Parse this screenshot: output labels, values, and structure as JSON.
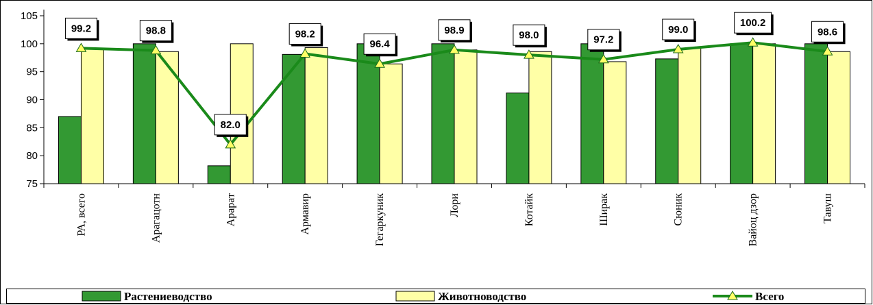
{
  "chart_data": {
    "type": "bar",
    "categories": [
      "РА, всего",
      "Арагацотн",
      "Арарат",
      "Армавир",
      "Гегаркуник",
      "Лори",
      "Котайк",
      "Ширак",
      "Сюник",
      "Вайоц дзор",
      "Тавуш"
    ],
    "y_ticks": [
      "75",
      "80",
      "85",
      "90",
      "95",
      "100",
      "105"
    ],
    "ylim": [
      75,
      105
    ],
    "grid": false,
    "legend_position": "bottom",
    "series": [
      {
        "name": "Растениеводство",
        "kind": "bar",
        "color": "#339933",
        "values": [
          87.0,
          100.0,
          78.2,
          98.1,
          100.0,
          100.0,
          91.2,
          100.0,
          97.3,
          100.0,
          100.0
        ]
      },
      {
        "name": "Животноводство",
        "kind": "bar",
        "color": "#ffffa6",
        "values": [
          99.2,
          98.6,
          100.0,
          99.3,
          96.4,
          98.9,
          98.6,
          96.8,
          99.2,
          100.0,
          98.6
        ]
      },
      {
        "name": "Всего",
        "kind": "line",
        "color": "#1a8a1a",
        "marker_color": "#ffff66",
        "values": [
          99.2,
          98.8,
          82.0,
          98.2,
          96.4,
          98.9,
          98.0,
          97.2,
          99.0,
          100.2,
          98.6
        ]
      }
    ],
    "data_labels": [
      "99.2",
      "98.8",
      "82.0",
      "98.2",
      "96.4",
      "98.9",
      "98.0",
      "97.2",
      "99.0",
      "100.2",
      "98.6"
    ]
  }
}
